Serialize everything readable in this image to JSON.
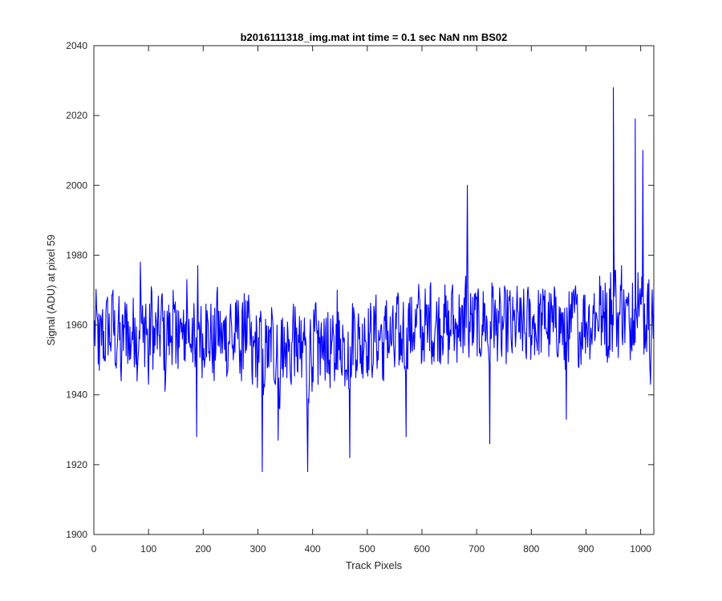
{
  "chart_data": {
    "type": "line",
    "title": "b2016111318_img.mat int time = 0.1 sec  NaN nm BS02",
    "xlabel": "Track Pixels",
    "ylabel": "Signal (ADU) at pixel 59",
    "xlim": [
      0,
      1024
    ],
    "ylim": [
      1900,
      2040
    ],
    "xticks": [
      0,
      100,
      200,
      300,
      400,
      500,
      600,
      700,
      800,
      900,
      1000
    ],
    "yticks": [
      1900,
      1920,
      1940,
      1960,
      1980,
      2000,
      2020,
      2040
    ],
    "grid": false,
    "line_color": "#0000ff",
    "series": [
      {
        "x": [
          0,
          5,
          10,
          15,
          20,
          25,
          30,
          35,
          40,
          45,
          50,
          55,
          60,
          65,
          70,
          75,
          80,
          85,
          90,
          95,
          100,
          105,
          110,
          115,
          120,
          125,
          130,
          135,
          140,
          145,
          150,
          155,
          160,
          165,
          170,
          175,
          180,
          185,
          190,
          195,
          200,
          205,
          210,
          215,
          220,
          225,
          230,
          235,
          240,
          245,
          250,
          255,
          260,
          265,
          270,
          275,
          280,
          285,
          290,
          295,
          300,
          305,
          310,
          315,
          320,
          325,
          330,
          335,
          340,
          345,
          350,
          355,
          360,
          365,
          370,
          375,
          380,
          385,
          390,
          395,
          400,
          405,
          410,
          415,
          420,
          425,
          430,
          435,
          440,
          445,
          450,
          455,
          460,
          465,
          470,
          475,
          480,
          485,
          490,
          495,
          500,
          505,
          510,
          515,
          520,
          525,
          530,
          535,
          540,
          545,
          550,
          555,
          560,
          565,
          570,
          575,
          580,
          585,
          590,
          595,
          600,
          605,
          610,
          615,
          620,
          625,
          630,
          635,
          640,
          645,
          650,
          655,
          660,
          665,
          670,
          675,
          680,
          685,
          690,
          695,
          700,
          705,
          710,
          715,
          720,
          725,
          730,
          735,
          740,
          745,
          750,
          755,
          760,
          765,
          770,
          775,
          780,
          785,
          790,
          795,
          800,
          805,
          810,
          815,
          820,
          825,
          830,
          835,
          840,
          845,
          850,
          855,
          860,
          865,
          870,
          875,
          880,
          885,
          890,
          895,
          900,
          905,
          910,
          915,
          920,
          925,
          930,
          935,
          940,
          945,
          950,
          955,
          960,
          965,
          970,
          975,
          980,
          985,
          990,
          995,
          1000,
          1005,
          1010,
          1015,
          1020,
          1024
        ],
        "y": [
          1958,
          1965,
          1947,
          1962,
          1951,
          1968,
          1955,
          1970,
          1949,
          1963,
          1944,
          1960,
          1966,
          1950,
          1958,
          1962,
          1948,
          1978,
          1955,
          1966,
          1943,
          1971,
          1952,
          1960,
          1957,
          1969,
          1945,
          1962,
          1955,
          1970,
          1949,
          1964,
          1958,
          1950,
          1973,
          1955,
          1962,
          1948,
          1977,
          1958,
          1950,
          1966,
          1952,
          1957,
          1944,
          1969,
          1958,
          1952,
          1962,
          1947,
          1966,
          1950,
          1958,
          1962,
          1944,
          1969,
          1955,
          1962,
          1943,
          1958,
          1950,
          1964,
          1940,
          1955,
          1948,
          1965,
          1944,
          1960,
          1936,
          1962,
          1948,
          1958,
          1944,
          1966,
          1951,
          1955,
          1945,
          1962,
          1933,
          1957,
          1948,
          1966,
          1943,
          1958,
          1950,
          1962,
          1946,
          1955,
          1944,
          1970,
          1950,
          1960,
          1947,
          1958,
          1945,
          1965,
          1950,
          1956,
          1946,
          1962,
          1951,
          1958,
          1948,
          1964,
          1950,
          1960,
          1944,
          1967,
          1952,
          1955,
          1948,
          1966,
          1950,
          1960,
          1946,
          1964,
          1953,
          1958,
          1960,
          1968,
          1950,
          1962,
          1955,
          1971,
          1951,
          1960,
          1962,
          1957,
          1966,
          1958,
          1953,
          1970,
          1956,
          1960,
          1965,
          1952,
          1974,
          1955,
          1963,
          1958,
          1968,
          1952,
          1960,
          1966,
          1955,
          1961,
          1971,
          1957,
          1964,
          1953,
          1962,
          1958,
          1967,
          1952,
          1960,
          1964,
          1956,
          1961,
          1952,
          1968,
          1957,
          1963,
          1955,
          1966,
          1960,
          1970,
          1956,
          1962,
          1958,
          1968,
          1955,
          1963,
          1950,
          1965,
          1956,
          1962,
          1970,
          1958,
          1954,
          1967,
          1960,
          1965,
          1957,
          1969,
          1962,
          1974,
          1958,
          1972,
          1952,
          1975,
          1960,
          1968,
          1962,
          1977,
          1965,
          1968,
          1958,
          1972,
          1955,
          1975,
          1966,
          1964,
          1960,
          1973,
          1962,
          1970
        ]
      }
    ],
    "spikes": [
      {
        "x": 130,
        "y": 1941
      },
      {
        "x": 188,
        "y": 1928
      },
      {
        "x": 308,
        "y": 1918
      },
      {
        "x": 337,
        "y": 1927
      },
      {
        "x": 391,
        "y": 1918
      },
      {
        "x": 468,
        "y": 1922
      },
      {
        "x": 571,
        "y": 1928
      },
      {
        "x": 683,
        "y": 2000
      },
      {
        "x": 724,
        "y": 1926
      },
      {
        "x": 864,
        "y": 1933
      },
      {
        "x": 950,
        "y": 2028
      },
      {
        "x": 990,
        "y": 2019
      },
      {
        "x": 1004,
        "y": 2010
      },
      {
        "x": 1018,
        "y": 1943
      }
    ]
  }
}
